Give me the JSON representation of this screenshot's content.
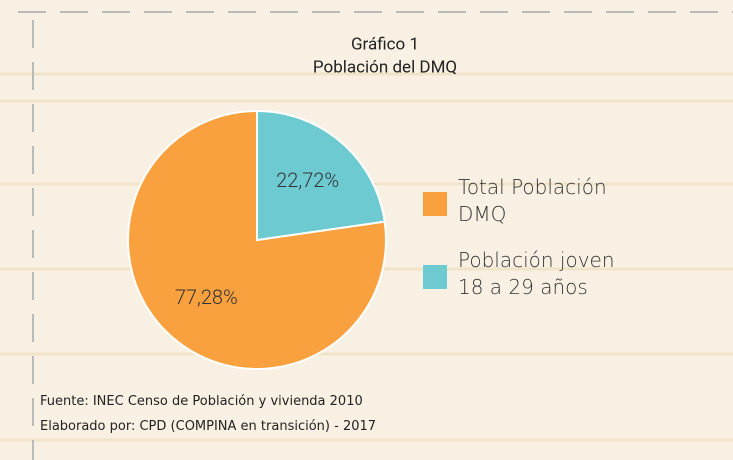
{
  "chart_data": {
    "type": "pie",
    "title": "Gráfico 1",
    "subtitle": "Población del DMQ",
    "categories": [
      "Total Población DMQ",
      "Población joven 18 a 29 años"
    ],
    "values": [
      77.28,
      22.72
    ],
    "value_labels": [
      "77,28%",
      "22,72%"
    ],
    "colors": [
      "#f9a13e",
      "#6ccad0"
    ],
    "legend": "right",
    "notes": [
      "Fuente: INEC Censo de Población y vivienda 2010",
      "Elaborado por: CPD (COMPINA en transición) - 2017"
    ]
  }
}
